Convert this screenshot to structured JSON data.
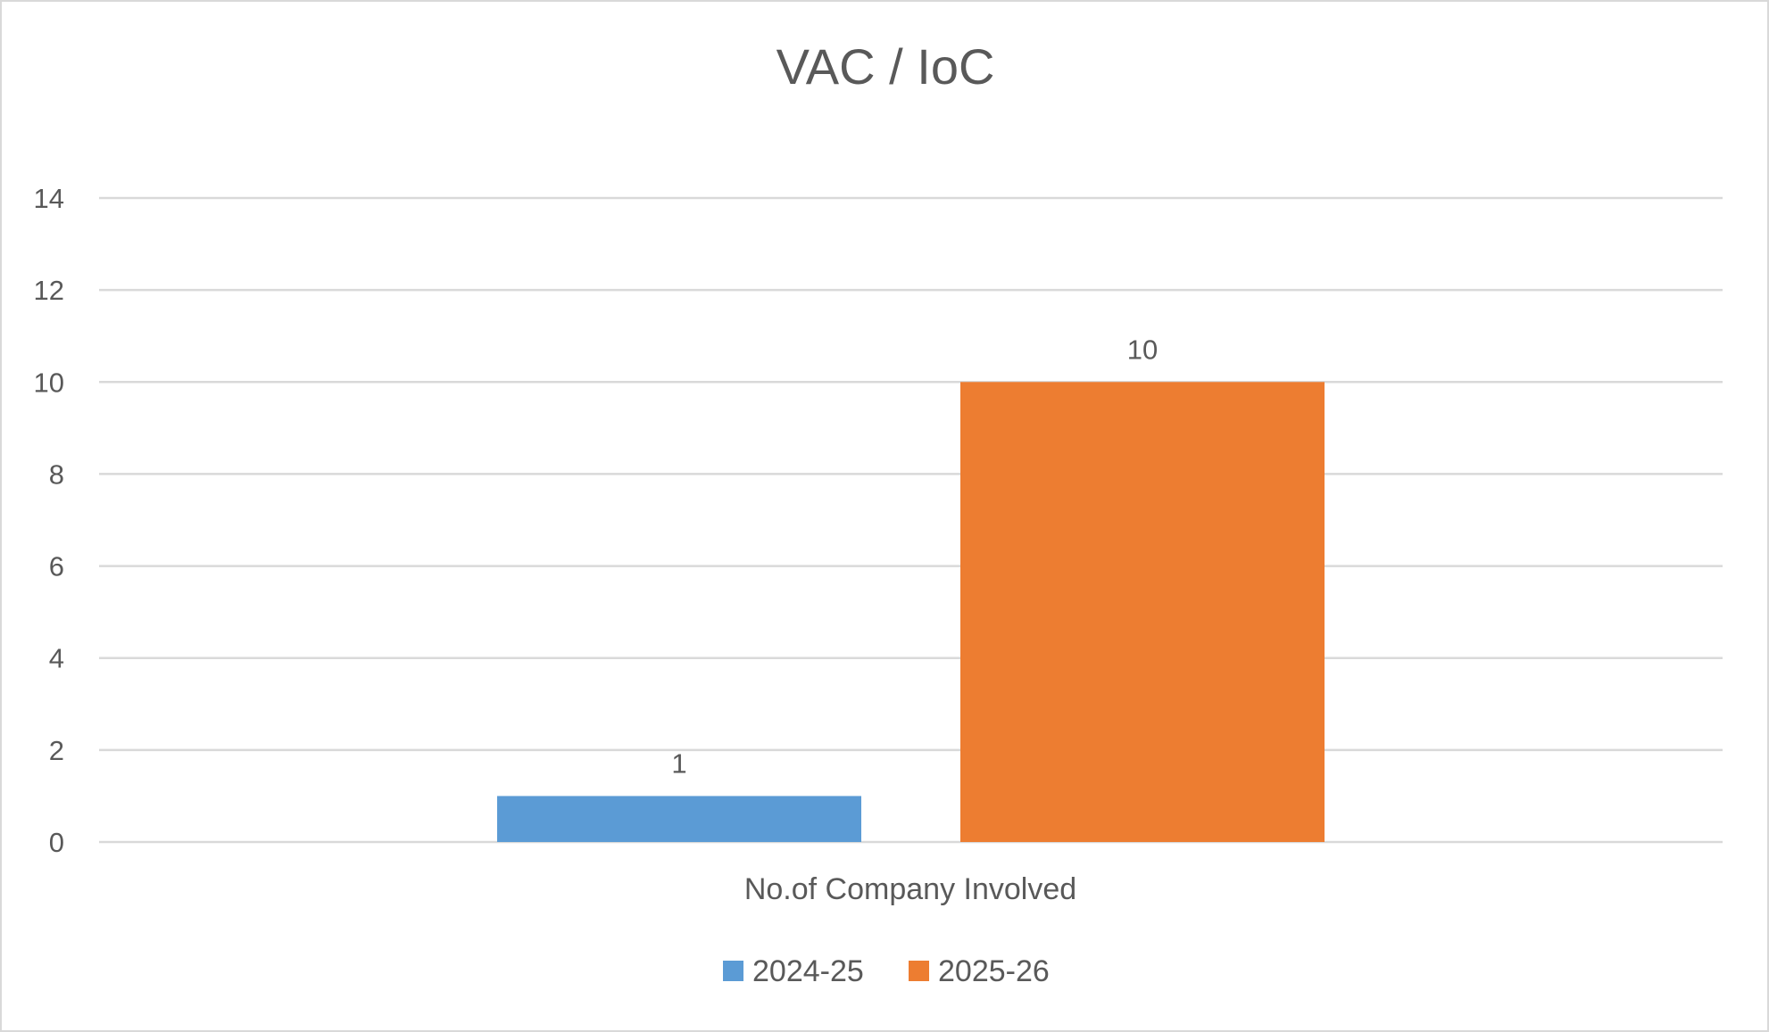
{
  "chart_data": {
    "type": "bar",
    "title": "VAC / IoC",
    "categories": [
      "No.of Company Involved"
    ],
    "series": [
      {
        "name": "2024-25",
        "values": [
          1
        ],
        "color": "#5B9BD5"
      },
      {
        "name": "2025-26",
        "values": [
          10
        ],
        "color": "#ED7D31"
      }
    ],
    "ylim": [
      0,
      14
    ],
    "yticks": [
      0,
      2,
      4,
      6,
      8,
      10,
      12,
      14
    ],
    "grid": true,
    "data_labels": true,
    "legend": "bottom"
  }
}
